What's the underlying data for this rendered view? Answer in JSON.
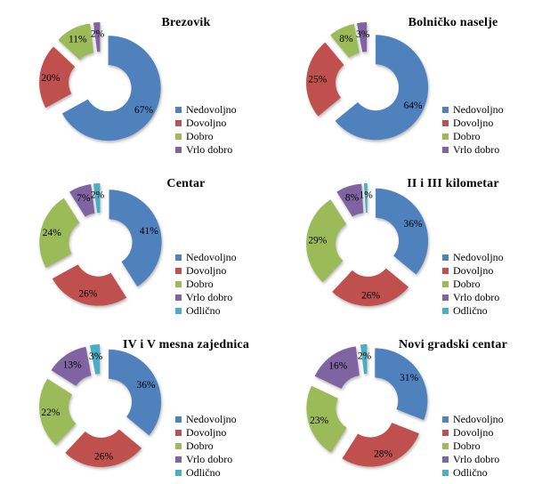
{
  "background": "#ffffff",
  "palette": {
    "Nedovoljno": "#4F81BD",
    "Dovoljno": "#C0504D",
    "Dobro": "#9BBB59",
    "Vrlo dobro": "#8064A2",
    "Odlično": "#4BACC6"
  },
  "chart_data": [
    {
      "type": "pie",
      "subtype": "exploded-donut",
      "title": "Brezovik",
      "labels": [
        "Nedovoljno",
        "Dovoljno",
        "Dobro",
        "Vrlo dobro"
      ],
      "values": [
        67,
        20,
        11,
        2
      ],
      "unit": "%",
      "legend_position": "right"
    },
    {
      "type": "pie",
      "subtype": "exploded-donut",
      "title": "Bolničko naselje",
      "labels": [
        "Nedovoljno",
        "Dovoljno",
        "Dobro",
        "Vrlo dobro"
      ],
      "values": [
        64,
        25,
        8,
        3
      ],
      "unit": "%",
      "legend_position": "right"
    },
    {
      "type": "pie",
      "subtype": "exploded-donut",
      "title": "Centar",
      "labels": [
        "Nedovoljno",
        "Dovoljno",
        "Dobro",
        "Vrlo dobro",
        "Odlično"
      ],
      "values": [
        41,
        26,
        24,
        7,
        2
      ],
      "unit": "%",
      "legend_position": "right"
    },
    {
      "type": "pie",
      "subtype": "exploded-donut",
      "title": "II i III kilometar",
      "labels": [
        "Nedovoljno",
        "Dovoljno",
        "Dobro",
        "Vrlo dobro",
        "Odlično"
      ],
      "values": [
        36,
        26,
        29,
        8,
        1
      ],
      "unit": "%",
      "legend_position": "right"
    },
    {
      "type": "pie",
      "subtype": "exploded-donut",
      "title": "IV i V mesna zajednica",
      "labels": [
        "Nedovoljno",
        "Dovoljno",
        "Dobro",
        "Vrlo dobro",
        "Odlično"
      ],
      "values": [
        36,
        26,
        22,
        13,
        3
      ],
      "unit": "%",
      "legend_position": "right"
    },
    {
      "type": "pie",
      "subtype": "exploded-donut",
      "title": "Novi gradski centar",
      "labels": [
        "Nedovoljno",
        "Dovoljno",
        "Dobro",
        "Vrlo dobro",
        "Odlično"
      ],
      "values": [
        31,
        28,
        23,
        16,
        2
      ],
      "unit": "%",
      "legend_position": "right"
    }
  ]
}
